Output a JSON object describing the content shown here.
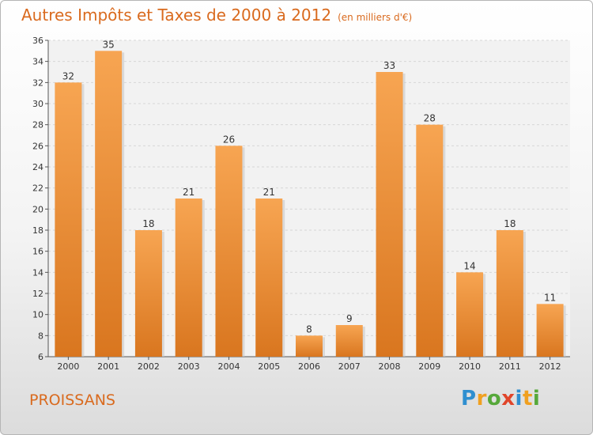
{
  "title": "Autres Impôts et Taxes de 2000 à 2012",
  "unit": "(en milliers d'€)",
  "commune": "PROISSANS",
  "brand": {
    "letters": [
      {
        "ch": "P",
        "color": "#2f8fd0"
      },
      {
        "ch": "r",
        "color": "#f0a020"
      },
      {
        "ch": "o",
        "color": "#56a83a"
      },
      {
        "ch": "x",
        "color": "#e0452a"
      },
      {
        "ch": "i",
        "color": "#2f8fd0"
      },
      {
        "ch": "t",
        "color": "#f0a020"
      },
      {
        "ch": "i",
        "color": "#56a83a"
      }
    ]
  },
  "colors": {
    "accent": "#d96a1e",
    "bar_light": "#f7a552",
    "bar_dark": "#d9761f"
  },
  "chart_data": {
    "type": "bar",
    "categories": [
      "2000",
      "2001",
      "2002",
      "2003",
      "2004",
      "2005",
      "2006",
      "2007",
      "2008",
      "2009",
      "2010",
      "2011",
      "2012"
    ],
    "values": [
      32,
      35,
      18,
      21,
      26,
      21,
      8,
      9,
      33,
      28,
      14,
      18,
      11
    ],
    "ylim": [
      6,
      36
    ],
    "yticks": [
      6,
      8,
      10,
      12,
      14,
      16,
      18,
      20,
      22,
      24,
      26,
      28,
      30,
      32,
      34,
      36
    ],
    "grid": true
  }
}
